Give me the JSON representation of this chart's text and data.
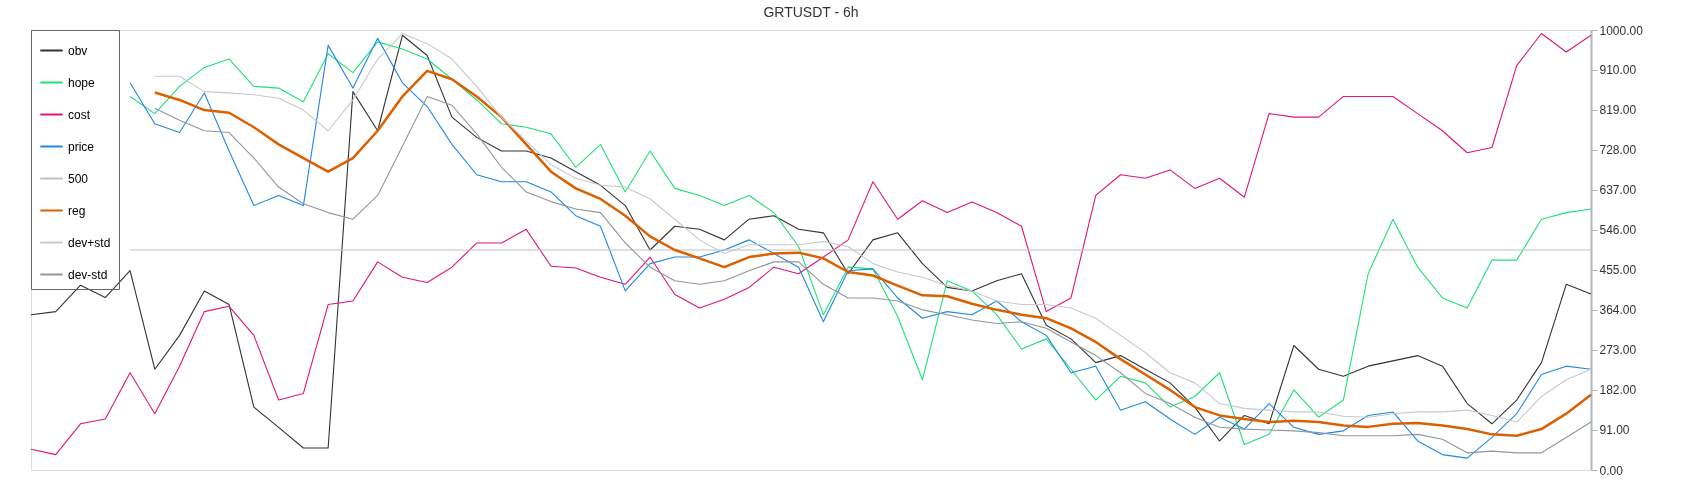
{
  "chart_data": {
    "type": "line",
    "title": "GRTUSDT - 6h",
    "categories": [
      null,
      null,
      null,
      null,
      null,
      null,
      null,
      null,
      null,
      null,
      null,
      null,
      null,
      null,
      null,
      null,
      null,
      null,
      null,
      null,
      null,
      null,
      null,
      null,
      null,
      null,
      null,
      null,
      null,
      null,
      null,
      null,
      null,
      null,
      null,
      null,
      null,
      null,
      null,
      null,
      null,
      null,
      null,
      null,
      null,
      null,
      null,
      null,
      null,
      null,
      null,
      null,
      null,
      null,
      null,
      null,
      null,
      null,
      null,
      null,
      null,
      null,
      null,
      null
    ],
    "ylim": [
      0,
      1000
    ],
    "yticks": [
      {
        "value": 0,
        "label": "0.00"
      },
      {
        "value": 91,
        "label": "91.00"
      },
      {
        "value": 182,
        "label": "182.00"
      },
      {
        "value": 273,
        "label": "273.00"
      },
      {
        "value": 364,
        "label": "364.00"
      },
      {
        "value": 455,
        "label": "455.00"
      },
      {
        "value": 546,
        "label": "546.00"
      },
      {
        "value": 637,
        "label": "637.00"
      },
      {
        "value": 728,
        "label": "728.00"
      },
      {
        "value": 819,
        "label": "819.00"
      },
      {
        "value": 910,
        "label": "910.00"
      },
      {
        "value": 1000,
        "label": "1000.00"
      }
    ],
    "legend": "top left",
    "grid": false,
    "marker": "none",
    "line_style": "solid",
    "series": [
      {
        "name": "obv",
        "color": "#333333",
        "values": [
          353,
          360,
          420,
          392,
          453,
          229,
          306,
          407,
          376,
          143,
          97,
          50,
          50,
          860,
          771,
          988,
          942,
          802,
          756,
          725,
          725,
          709,
          678,
          647,
          601,
          500,
          554,
          547,
          523,
          570,
          578,
          547,
          539,
          446,
          523,
          539,
          469,
          415,
          407,
          430,
          446,
          329,
          298,
          244,
          260,
          229,
          198,
          143,
          66,
          124,
          105,
          283,
          229,
          213,
          236,
          248,
          260,
          236,
          151,
          105,
          159,
          244,
          422,
          400
        ]
      },
      {
        "name": "hope",
        "color": "#1ee07a",
        "values": [
          null,
          null,
          null,
          null,
          849,
          810,
          872,
          915,
          934,
          872,
          868,
          837,
          946,
          903,
          973,
          957,
          934,
          888,
          841,
          787,
          779,
          764,
          688,
          740,
          632,
          725,
          640,
          624,
          601,
          624,
          585,
          508,
          353,
          461,
          457,
          349,
          205,
          430,
          407,
          353,
          275,
          298,
          229,
          159,
          213,
          198,
          143,
          167,
          221,
          58,
          81,
          182,
          120,
          159,
          446,
          570,
          461,
          391,
          368,
          477,
          477,
          570,
          585,
          593
        ]
      },
      {
        "name": "cost",
        "color": "#e0147a",
        "values": [
          47,
          35,
          105,
          116,
          221,
          128,
          236,
          360,
          372,
          306,
          159,
          174,
          376,
          384,
          473,
          438,
          426,
          461,
          516,
          516,
          547,
          463,
          459,
          438,
          422,
          484,
          399,
          368,
          388,
          415,
          461,
          446,
          484,
          523,
          655,
          570,
          612,
          585,
          609,
          585,
          554,
          360,
          391,
          624,
          671,
          663,
          682,
          640,
          663,
          620,
          810,
          802,
          802,
          849,
          849,
          849,
          810,
          771,
          721,
          733,
          919,
          992,
          950,
          988
        ]
      },
      {
        "name": "price",
        "color": "#1e88e5",
        "values": [
          null,
          null,
          null,
          null,
          880,
          787,
          767,
          857,
          725,
          601,
          624,
          601,
          965,
          868,
          981,
          880,
          826,
          740,
          671,
          655,
          655,
          632,
          578,
          554,
          407,
          469,
          484,
          484,
          500,
          523,
          492,
          461,
          337,
          453,
          457,
          391,
          345,
          360,
          353,
          384,
          337,
          306,
          221,
          236,
          136,
          155,
          116,
          81,
          120,
          93,
          151,
          97,
          81,
          89,
          124,
          132,
          66,
          35,
          27,
          74,
          128,
          217,
          236,
          229
        ]
      },
      {
        "name": "500",
        "color": "#c0c0c0",
        "values": [
          null,
          null,
          null,
          null,
          500,
          500,
          500,
          500,
          500,
          500,
          500,
          500,
          500,
          500,
          500,
          500,
          500,
          500,
          500,
          500,
          500,
          500,
          500,
          500,
          500,
          500,
          500,
          500,
          500,
          500,
          500,
          500,
          500,
          500,
          500,
          500,
          500,
          500,
          500,
          500,
          500,
          500,
          500,
          500,
          500,
          500,
          500,
          500,
          500,
          500,
          500,
          500,
          500,
          500,
          500,
          500,
          500,
          500,
          500,
          500,
          500,
          500,
          500,
          500
        ]
      },
      {
        "name": "reg",
        "color": "#dd6000",
        "values": [
          null,
          null,
          null,
          null,
          null,
          858,
          841,
          818,
          812,
          779,
          740,
          709,
          678,
          709,
          771,
          849,
          907,
          888,
          849,
          802,
          740,
          678,
          640,
          616,
          578,
          531,
          500,
          481,
          461,
          484,
          492,
          494,
          481,
          450,
          442,
          419,
          397,
          395,
          378,
          364,
          353,
          345,
          322,
          291,
          252,
          217,
          182,
          143,
          124,
          116,
          109,
          112,
          109,
          101,
          98,
          105,
          107,
          101,
          93,
          81,
          78,
          93,
          128,
          171
        ]
      },
      {
        "name": "dev+std",
        "color": "#c5cad0",
        "values": [
          null,
          null,
          null,
          null,
          null,
          895,
          895,
          860,
          857,
          853,
          845,
          818,
          771,
          841,
          934,
          992,
          969,
          934,
          872,
          802,
          748,
          694,
          663,
          647,
          643,
          616,
          570,
          523,
          492,
          512,
          512,
          512,
          519,
          508,
          469,
          450,
          438,
          419,
          407,
          384,
          376,
          376,
          368,
          345,
          306,
          267,
          221,
          198,
          151,
          140,
          136,
          132,
          132,
          122,
          120,
          128,
          132,
          132,
          136,
          124,
          109,
          167,
          205,
          229
        ]
      },
      {
        "name": "dev-std",
        "color": "#8e979e",
        "values": [
          null,
          null,
          null,
          null,
          null,
          822,
          795,
          771,
          767,
          709,
          643,
          605,
          585,
          570,
          624,
          736,
          849,
          829,
          764,
          688,
          632,
          610,
          593,
          585,
          516,
          461,
          430,
          422,
          430,
          453,
          473,
          473,
          422,
          391,
          391,
          384,
          364,
          353,
          341,
          333,
          337,
          322,
          291,
          260,
          221,
          174,
          151,
          120,
          97,
          93,
          91,
          89,
          85,
          78,
          78,
          78,
          81,
          70,
          39,
          43,
          39,
          39,
          74,
          109
        ]
      }
    ]
  }
}
